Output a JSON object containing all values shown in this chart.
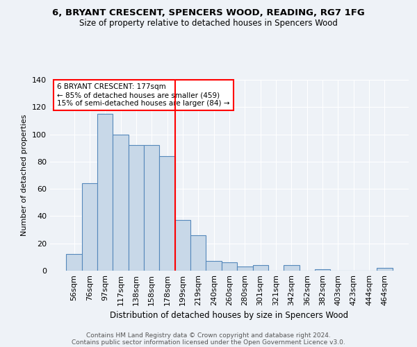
{
  "title1": "6, BRYANT CRESCENT, SPENCERS WOOD, READING, RG7 1FG",
  "title2": "Size of property relative to detached houses in Spencers Wood",
  "xlabel": "Distribution of detached houses by size in Spencers Wood",
  "ylabel": "Number of detached properties",
  "bar_labels": [
    "56sqm",
    "76sqm",
    "97sqm",
    "117sqm",
    "138sqm",
    "158sqm",
    "178sqm",
    "199sqm",
    "219sqm",
    "240sqm",
    "260sqm",
    "280sqm",
    "301sqm",
    "321sqm",
    "342sqm",
    "362sqm",
    "382sqm",
    "403sqm",
    "423sqm",
    "444sqm",
    "464sqm"
  ],
  "bar_values": [
    12,
    64,
    115,
    100,
    92,
    92,
    84,
    37,
    26,
    7,
    6,
    3,
    4,
    0,
    4,
    0,
    1,
    0,
    0,
    0,
    2
  ],
  "bar_color": "#c8d8e8",
  "bar_edge_color": "#5588bb",
  "reference_line_index": 6,
  "annotation_title": "6 BRYANT CRESCENT: 177sqm",
  "annotation_line1": "← 85% of detached houses are smaller (459)",
  "annotation_line2": "15% of semi-detached houses are larger (84) →",
  "ylim": [
    0,
    140
  ],
  "yticks": [
    0,
    20,
    40,
    60,
    80,
    100,
    120,
    140
  ],
  "footer1": "Contains HM Land Registry data © Crown copyright and database right 2024.",
  "footer2": "Contains public sector information licensed under the Open Government Licence v3.0.",
  "bg_color": "#eef2f7",
  "plot_bg_color": "#eef2f7"
}
